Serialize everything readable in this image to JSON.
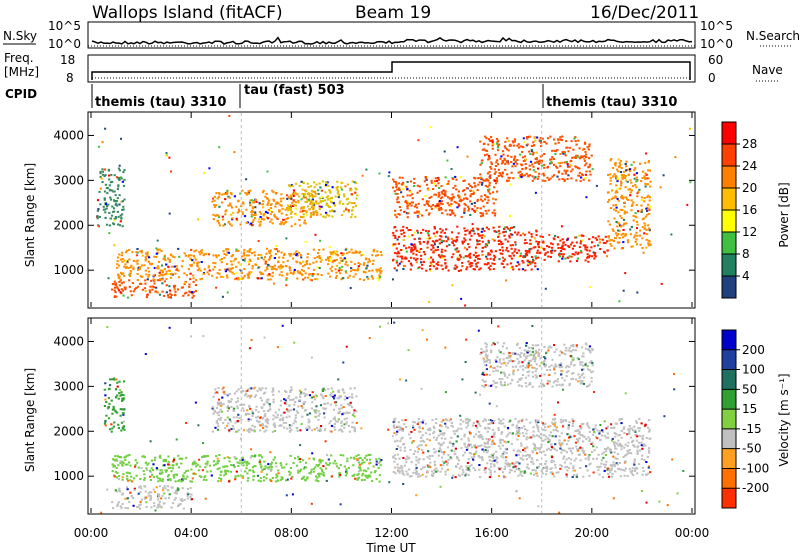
{
  "header": {
    "title_left": "Wallops Island (fitACF)",
    "title_center": "Beam 19",
    "title_right": "16/Dec/2011"
  },
  "status_panels": {
    "nsky_label": "N.Sky",
    "nsearch_label": "N.Search",
    "noise_ticks_left": [
      "10^5",
      "10^0"
    ],
    "noise_ticks_right": [
      "10^5",
      "10^0"
    ],
    "freq_label_top": "Freq.",
    "freq_label_unit": "[MHz]",
    "freq_ticks": [
      "18",
      "8"
    ],
    "nave_label": "Nave",
    "nave_ticks": [
      "60",
      "0"
    ],
    "cpid_label": "CPID",
    "cpid_segments": [
      {
        "label": "themis (tau) 3310",
        "start_hour": 0
      },
      {
        "label": "tau (fast) 503",
        "start_hour": 6
      },
      {
        "label": "themis (tau) 3310",
        "start_hour": 18
      }
    ]
  },
  "power_colorbar": {
    "label": "Power [dB]",
    "ticks": [
      "28",
      "24",
      "20",
      "16",
      "12",
      "8",
      "4"
    ],
    "colors": [
      "#ff0000",
      "#ff4000",
      "#ff8000",
      "#ffbf00",
      "#ffff00",
      "#40c040",
      "#208060",
      "#204080",
      "#0000ff"
    ]
  },
  "velocity_colorbar": {
    "label": "Velocity [m s⁻¹]",
    "ticks": [
      "200",
      "100",
      "50",
      "15",
      "-15",
      "-50",
      "-100",
      "-200"
    ],
    "colors": [
      "#0000cc",
      "#2040a0",
      "#207060",
      "#30a030",
      "#80d040",
      "#c0c0c0",
      "#ffa020",
      "#ff7000",
      "#ff3000",
      "#e00000"
    ]
  },
  "chart_data": {
    "type": "heatmap",
    "xlabel": "Time UT",
    "ylabel": "Slant Range [km]",
    "xlim": [
      0,
      24
    ],
    "ylim": [
      180,
      4500
    ],
    "x_tick_labels": [
      "00:00",
      "04:00",
      "08:00",
      "12:00",
      "16:00",
      "20:00",
      "00:00"
    ],
    "y_ticks": [
      1000,
      2000,
      3000,
      4000
    ],
    "power_echo_regions": [
      {
        "t0": 0.2,
        "t1": 1.3,
        "r0": 2000,
        "r1": 3300,
        "power_db": 12
      },
      {
        "t0": 0.8,
        "t1": 4.2,
        "r0": 400,
        "r1": 800,
        "power_db": 24
      },
      {
        "t0": 1.0,
        "t1": 11.6,
        "r0": 800,
        "r1": 1500,
        "power_db": 20
      },
      {
        "t0": 4.8,
        "t1": 9.0,
        "r0": 2000,
        "r1": 2800,
        "power_db": 20
      },
      {
        "t0": 7.8,
        "t1": 10.6,
        "r0": 2200,
        "r1": 3000,
        "power_db": 16
      },
      {
        "t0": 12.0,
        "t1": 17.8,
        "r0": 1000,
        "r1": 2000,
        "power_db": 28
      },
      {
        "t0": 17.8,
        "t1": 20.6,
        "r0": 1200,
        "r1": 1800,
        "power_db": 28
      },
      {
        "t0": 12.0,
        "t1": 16.2,
        "r0": 2200,
        "r1": 3100,
        "power_db": 24
      },
      {
        "t0": 15.5,
        "t1": 20.0,
        "r0": 3000,
        "r1": 4000,
        "power_db": 24
      },
      {
        "t0": 20.6,
        "t1": 22.3,
        "r0": 1500,
        "r1": 3500,
        "power_db": 20
      }
    ],
    "velocity_echo_regions": [
      {
        "t0": 0.5,
        "t1": 1.3,
        "r0": 2000,
        "r1": 3200,
        "velocity_ms": 50
      },
      {
        "t0": 0.8,
        "t1": 11.6,
        "r0": 900,
        "r1": 1500,
        "velocity_ms": 30
      },
      {
        "t0": 0.8,
        "t1": 4.0,
        "r0": 300,
        "r1": 800,
        "velocity_ms": 10
      },
      {
        "t0": 4.8,
        "t1": 10.6,
        "r0": 2000,
        "r1": 3000,
        "velocity_ms": 0
      },
      {
        "t0": 12.0,
        "t1": 22.3,
        "r0": 1000,
        "r1": 2300,
        "velocity_ms": 0
      },
      {
        "t0": 15.5,
        "t1": 20.0,
        "r0": 3000,
        "r1": 4000,
        "velocity_ms": 0
      }
    ]
  }
}
